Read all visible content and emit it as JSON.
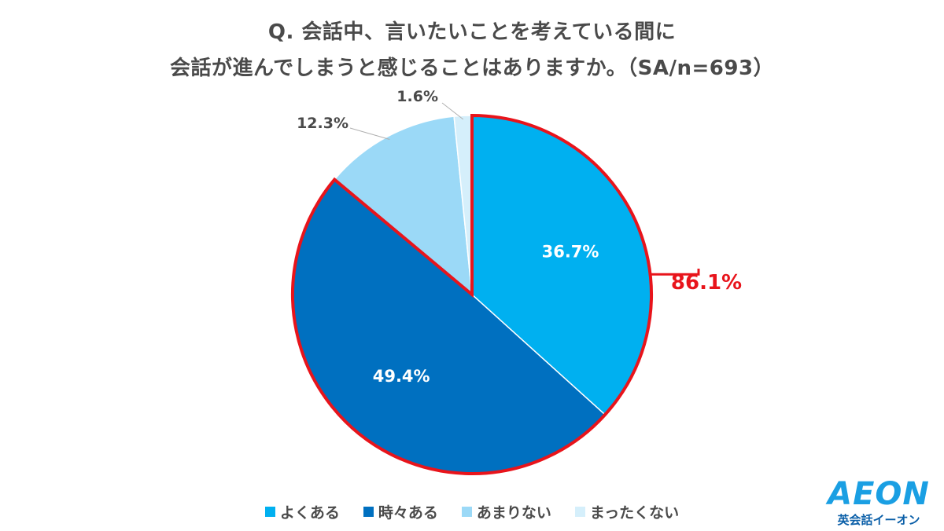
{
  "title": {
    "line1": "Q. 会話中、言いたいことを考えている間に",
    "line2": "会話が進んでしまうと感じることはありますか。（SA/n=693）"
  },
  "chart_data": {
    "type": "pie",
    "title": "Q. 会話中、言いたいことを考えている間に会話が進んでしまうと感じることはありますか。（SA/n=693）",
    "slices": [
      {
        "label": "よくある",
        "value": 36.7,
        "display": "36.7%",
        "color": "#00b0f0"
      },
      {
        "label": "時々ある",
        "value": 49.4,
        "display": "49.4%",
        "color": "#0070c0"
      },
      {
        "label": "あまりない",
        "value": 12.3,
        "display": "12.3%",
        "color": "#9bd9f7"
      },
      {
        "label": "まったくない",
        "value": 1.6,
        "display": "1.6%",
        "color": "#d5effb"
      }
    ],
    "highlight": {
      "label": "86.1%",
      "color": "#e8141b",
      "includes": [
        "よくある",
        "時々ある"
      ]
    },
    "legend_placement": "bottom"
  },
  "logo": {
    "main": "AEON",
    "sub": "英会話イーオン"
  }
}
